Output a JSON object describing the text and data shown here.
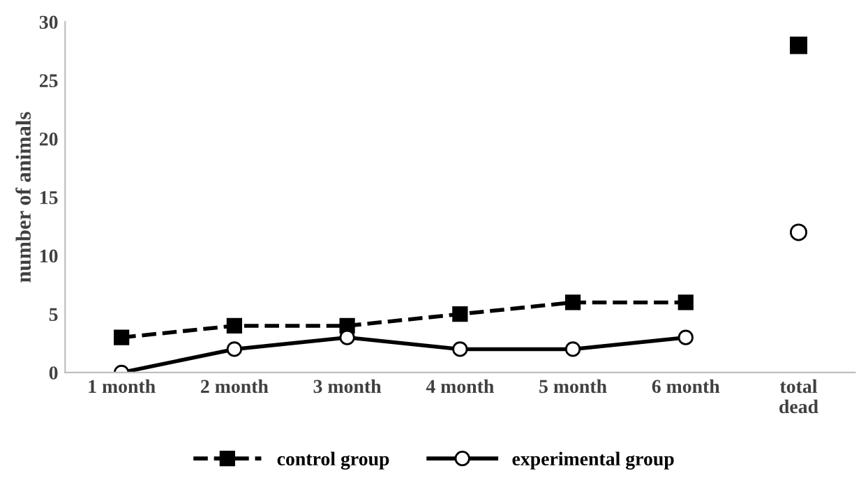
{
  "chart_data": {
    "type": "line",
    "ylabel": "number of animals",
    "categories": [
      "1 month",
      "2 month",
      "3 month",
      "4 month",
      "5 month",
      "6 month",
      "total\ndead"
    ],
    "series": [
      {
        "name": "control group",
        "color": "#000000",
        "values": [
          3,
          4,
          4,
          5,
          6,
          6,
          null
        ],
        "marker": "square",
        "line_style": "dashed"
      },
      {
        "name": "experimental group",
        "color": "#000000",
        "values": [
          0,
          2,
          3,
          2,
          2,
          3,
          null
        ],
        "marker": "circle",
        "line_style": "solid"
      },
      {
        "type": "scatter",
        "color": "#000000",
        "values": [
          null,
          null,
          null,
          null,
          null,
          null,
          28
        ],
        "marker": "square"
      },
      {
        "type": "scatter",
        "color": "#000000",
        "values": [
          null,
          null,
          null,
          null,
          null,
          null,
          12
        ],
        "marker": "circle"
      }
    ],
    "ylim": [
      0,
      30
    ],
    "yticks": [
      0,
      5,
      10,
      15,
      20,
      25,
      30
    ],
    "grid": false,
    "legend": "bottom"
  }
}
